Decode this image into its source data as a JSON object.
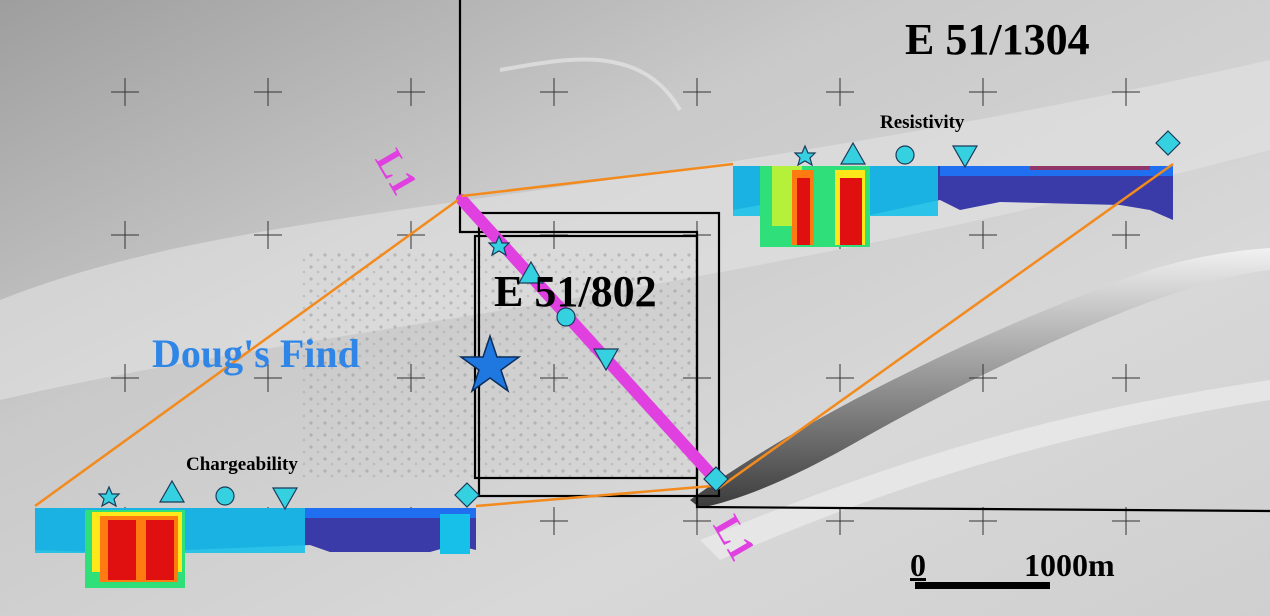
{
  "labels": {
    "tenement_north": "E 51/1304",
    "tenement_central": "E 51/802",
    "prospect": "Doug's Find",
    "section_resistivity": "Resistivity",
    "section_chargeability": "Chargeability",
    "line_label_top": "L1",
    "line_label_bottom": "L1",
    "scale_start": "0",
    "scale_end": "1000m"
  },
  "colors": {
    "survey_line": "#e040e0",
    "connector": "#f28a1e",
    "marker": "#36d1e0",
    "prospect_star": "#1f78e0",
    "prospect_text": "#2f86e6",
    "boundary": "#000000"
  },
  "section_colormap": [
    "#3a3aa8",
    "#1f6ff0",
    "#17c0e8",
    "#2fe07a",
    "#b5f03a",
    "#ffe81a",
    "#ff7a10",
    "#e01010"
  ],
  "markers": [
    "star",
    "triangle-up",
    "circle",
    "triangle-down",
    "diamond"
  ]
}
